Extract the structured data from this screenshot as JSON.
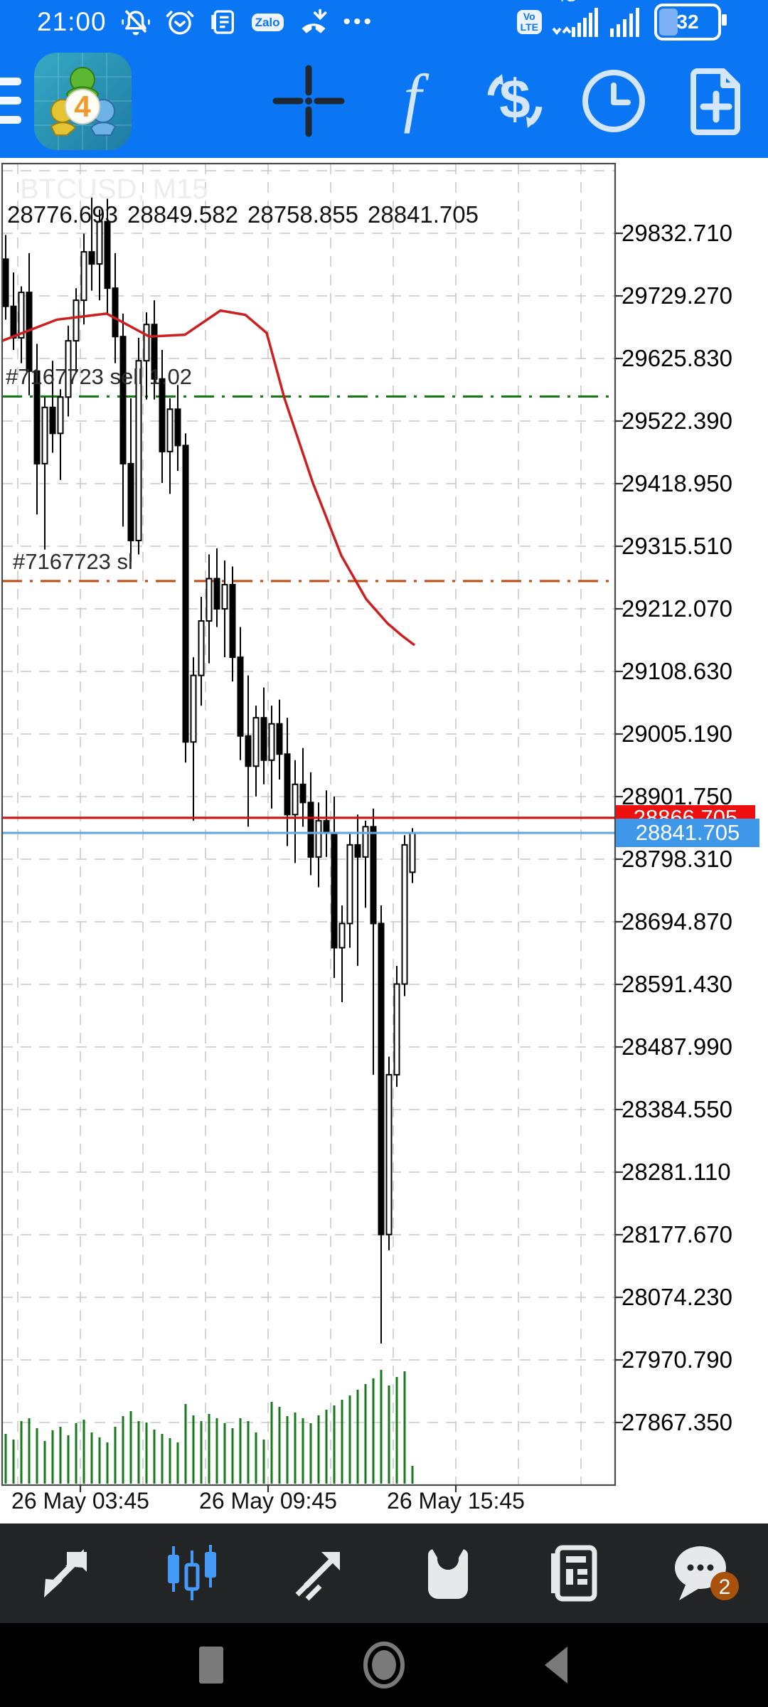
{
  "status_bar": {
    "time": "21:00",
    "zalo": "Zalo",
    "more": "•••",
    "volte_line1": "Vo",
    "volte_line2": "LTE",
    "network": "4G",
    "battery_percent": "32"
  },
  "chart": {
    "watermark": "BTCUSD, M15",
    "ohlc": {
      "open": "28776.693",
      "high": "28849.582",
      "low": "28758.855",
      "close": "28841.705"
    },
    "sell_order_label": "#7167723 sell 1.02",
    "sl_order_label": "#7167723 sl",
    "ask_tag": "28866.705",
    "bid_tag": "28841.705",
    "y_axis_labels": [
      "29832.710",
      "29729.270",
      "29625.830",
      "29522.390",
      "29418.950",
      "29315.510",
      "29212.070",
      "29108.630",
      "29005.190",
      "28901.750",
      "28798.310",
      "28694.870",
      "28591.430",
      "28487.990",
      "28384.550",
      "28281.110",
      "28177.670",
      "28074.230",
      "27970.790",
      "27867.350"
    ],
    "x_axis_labels": [
      "26 May 03:45",
      "26 May 09:45",
      "26 May 15:45"
    ]
  },
  "chart_data": {
    "type": "candlestick",
    "symbol": "BTCUSD",
    "timeframe": "M15",
    "title": "BTCUSD, M15",
    "ylim": [
      27867.35,
      29832.71
    ],
    "y_tick_start": 29832.71,
    "y_tick_step": 103.44,
    "y_tick_count": 20,
    "x_tick_labels": [
      "26 May 03:45",
      "26 May 09:45",
      "26 May 15:45"
    ],
    "grid": true,
    "current": {
      "open": 28776.693,
      "high": 28849.582,
      "low": 28758.855,
      "close": 28841.705
    },
    "lines": {
      "sell_entry": 29563,
      "stop_loss": 29258,
      "ask": 28866.705,
      "bid": 28841.705
    },
    "line_colors": {
      "sell_entry": "#157a15",
      "stop_loss": "#bf4f17",
      "ask": "#cf1212",
      "bid": "#68a9da",
      "ma": "#cc1f1f"
    },
    "candles": [
      [
        29790,
        29830,
        29690,
        29712
      ],
      [
        29712,
        29768,
        29640,
        29660
      ],
      [
        29660,
        29745,
        29618,
        29735
      ],
      [
        29735,
        29800,
        29565,
        29605
      ],
      [
        29605,
        29650,
        29368,
        29452
      ],
      [
        29452,
        29562,
        29310,
        29545
      ],
      [
        29545,
        29622,
        29470,
        29502
      ],
      [
        29502,
        29575,
        29425,
        29562
      ],
      [
        29562,
        29680,
        29530,
        29655
      ],
      [
        29655,
        29742,
        29602,
        29722
      ],
      [
        29722,
        29832,
        29682,
        29802
      ],
      [
        29802,
        29895,
        29738,
        29782
      ],
      [
        29782,
        29872,
        29722,
        29852
      ],
      [
        29852,
        29890,
        29698,
        29742
      ],
      [
        29742,
        29800,
        29618,
        29662
      ],
      [
        29662,
        29700,
        29348,
        29452
      ],
      [
        29452,
        29560,
        29290,
        29325
      ],
      [
        29325,
        29660,
        29302,
        29622
      ],
      [
        29622,
        29702,
        29558,
        29682
      ],
      [
        29682,
        29722,
        29558,
        29592
      ],
      [
        29592,
        29640,
        29420,
        29472
      ],
      [
        29472,
        29560,
        29402,
        29542
      ],
      [
        29542,
        29582,
        29440,
        29482
      ],
      [
        29482,
        29502,
        28958,
        28992
      ],
      [
        28992,
        29132,
        28862,
        29102
      ],
      [
        29102,
        29232,
        29052,
        29192
      ],
      [
        29192,
        29302,
        29122,
        29262
      ],
      [
        29262,
        29312,
        29182,
        29212
      ],
      [
        29212,
        29292,
        29132,
        29252
      ],
      [
        29252,
        29282,
        29092,
        29132
      ],
      [
        29132,
        29182,
        28962,
        29002
      ],
      [
        29002,
        29102,
        28852,
        28952
      ],
      [
        28952,
        29052,
        28902,
        29032
      ],
      [
        29032,
        29082,
        28922,
        28962
      ],
      [
        28962,
        29052,
        28882,
        29022
      ],
      [
        29022,
        29062,
        28930,
        28972
      ],
      [
        28972,
        29032,
        28820,
        28872
      ],
      [
        28872,
        28962,
        28792,
        28922
      ],
      [
        28922,
        28982,
        28852,
        28892
      ],
      [
        28892,
        28942,
        28772,
        28802
      ],
      [
        28802,
        28892,
        28752,
        28862
      ],
      [
        28862,
        28912,
        28802,
        28842
      ],
      [
        28842,
        28902,
        28602,
        28652
      ],
      [
        28652,
        28722,
        28562,
        28692
      ],
      [
        28692,
        28842,
        28652,
        28822
      ],
      [
        28822,
        28872,
        28622,
        28802
      ],
      [
        28802,
        28862,
        28718,
        28852
      ],
      [
        28852,
        28882,
        28442,
        28692
      ],
      [
        28692,
        28722,
        27998,
        28178
      ],
      [
        28178,
        28472,
        28152,
        28442
      ],
      [
        28442,
        28622,
        28422,
        28592
      ],
      [
        28592,
        28838,
        28572,
        28822
      ],
      [
        28776.693,
        28849.582,
        28758.855,
        28841.705
      ]
    ],
    "volume": [
      70,
      62,
      88,
      92,
      78,
      60,
      75,
      80,
      68,
      85,
      90,
      72,
      65,
      58,
      80,
      95,
      102,
      88,
      86,
      76,
      70,
      64,
      58,
      112,
      96,
      88,
      98,
      92,
      85,
      78,
      92,
      88,
      72,
      62,
      115,
      108,
      95,
      100,
      92,
      85,
      96,
      104,
      110,
      118,
      124,
      132,
      140,
      148,
      160,
      138,
      150,
      158,
      25
    ],
    "ma_red": [
      [
        3,
        29655
      ],
      [
        80,
        29690
      ],
      [
        150,
        29700
      ],
      [
        210,
        29662
      ],
      [
        260,
        29665
      ],
      [
        310,
        29705
      ],
      [
        345,
        29698
      ],
      [
        375,
        29668
      ],
      [
        400,
        29560
      ],
      [
        440,
        29420
      ],
      [
        480,
        29300
      ],
      [
        515,
        29228
      ],
      [
        545,
        29188
      ],
      [
        565,
        29168
      ],
      [
        583,
        29152
      ]
    ]
  },
  "bottom_nav": {
    "items": [
      {
        "label": "quotes"
      },
      {
        "label": "charts",
        "active": true
      },
      {
        "label": "trade"
      },
      {
        "label": "history"
      },
      {
        "label": "news"
      },
      {
        "label": "messages",
        "badge": "2"
      }
    ],
    "badge": "2",
    "active_color": "#459af7",
    "badge_color": "#a8520c"
  }
}
